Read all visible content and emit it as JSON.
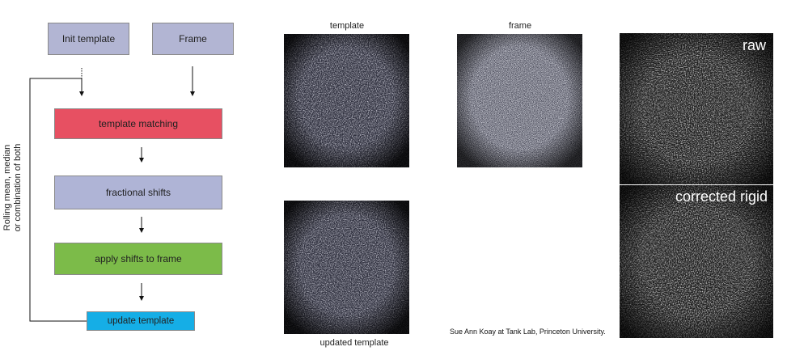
{
  "flowchart": {
    "init_template": "Init template",
    "frame": "Frame",
    "template_matching": "template matching",
    "fractional_shifts": "fractional shifts",
    "apply_shifts": "apply shifts to frame",
    "update_template": "update template",
    "loop_label_line1": "Rolling mean, median",
    "loop_label_line2": "or combination of both"
  },
  "images": {
    "template_caption": "template",
    "frame_caption": "frame",
    "updated_template_caption": "updated template",
    "raw_label": "raw",
    "corrected_label": "corrected rigid"
  },
  "credit": "Sue Ann Koay at Tank Lab, Princeton University.",
  "colors": {
    "init_fill": "#b2b5d3",
    "matching_fill": "#e75062",
    "shifts_fill": "#afb4d6",
    "apply_fill": "#7cbb49",
    "update_fill": "#15aee6"
  }
}
